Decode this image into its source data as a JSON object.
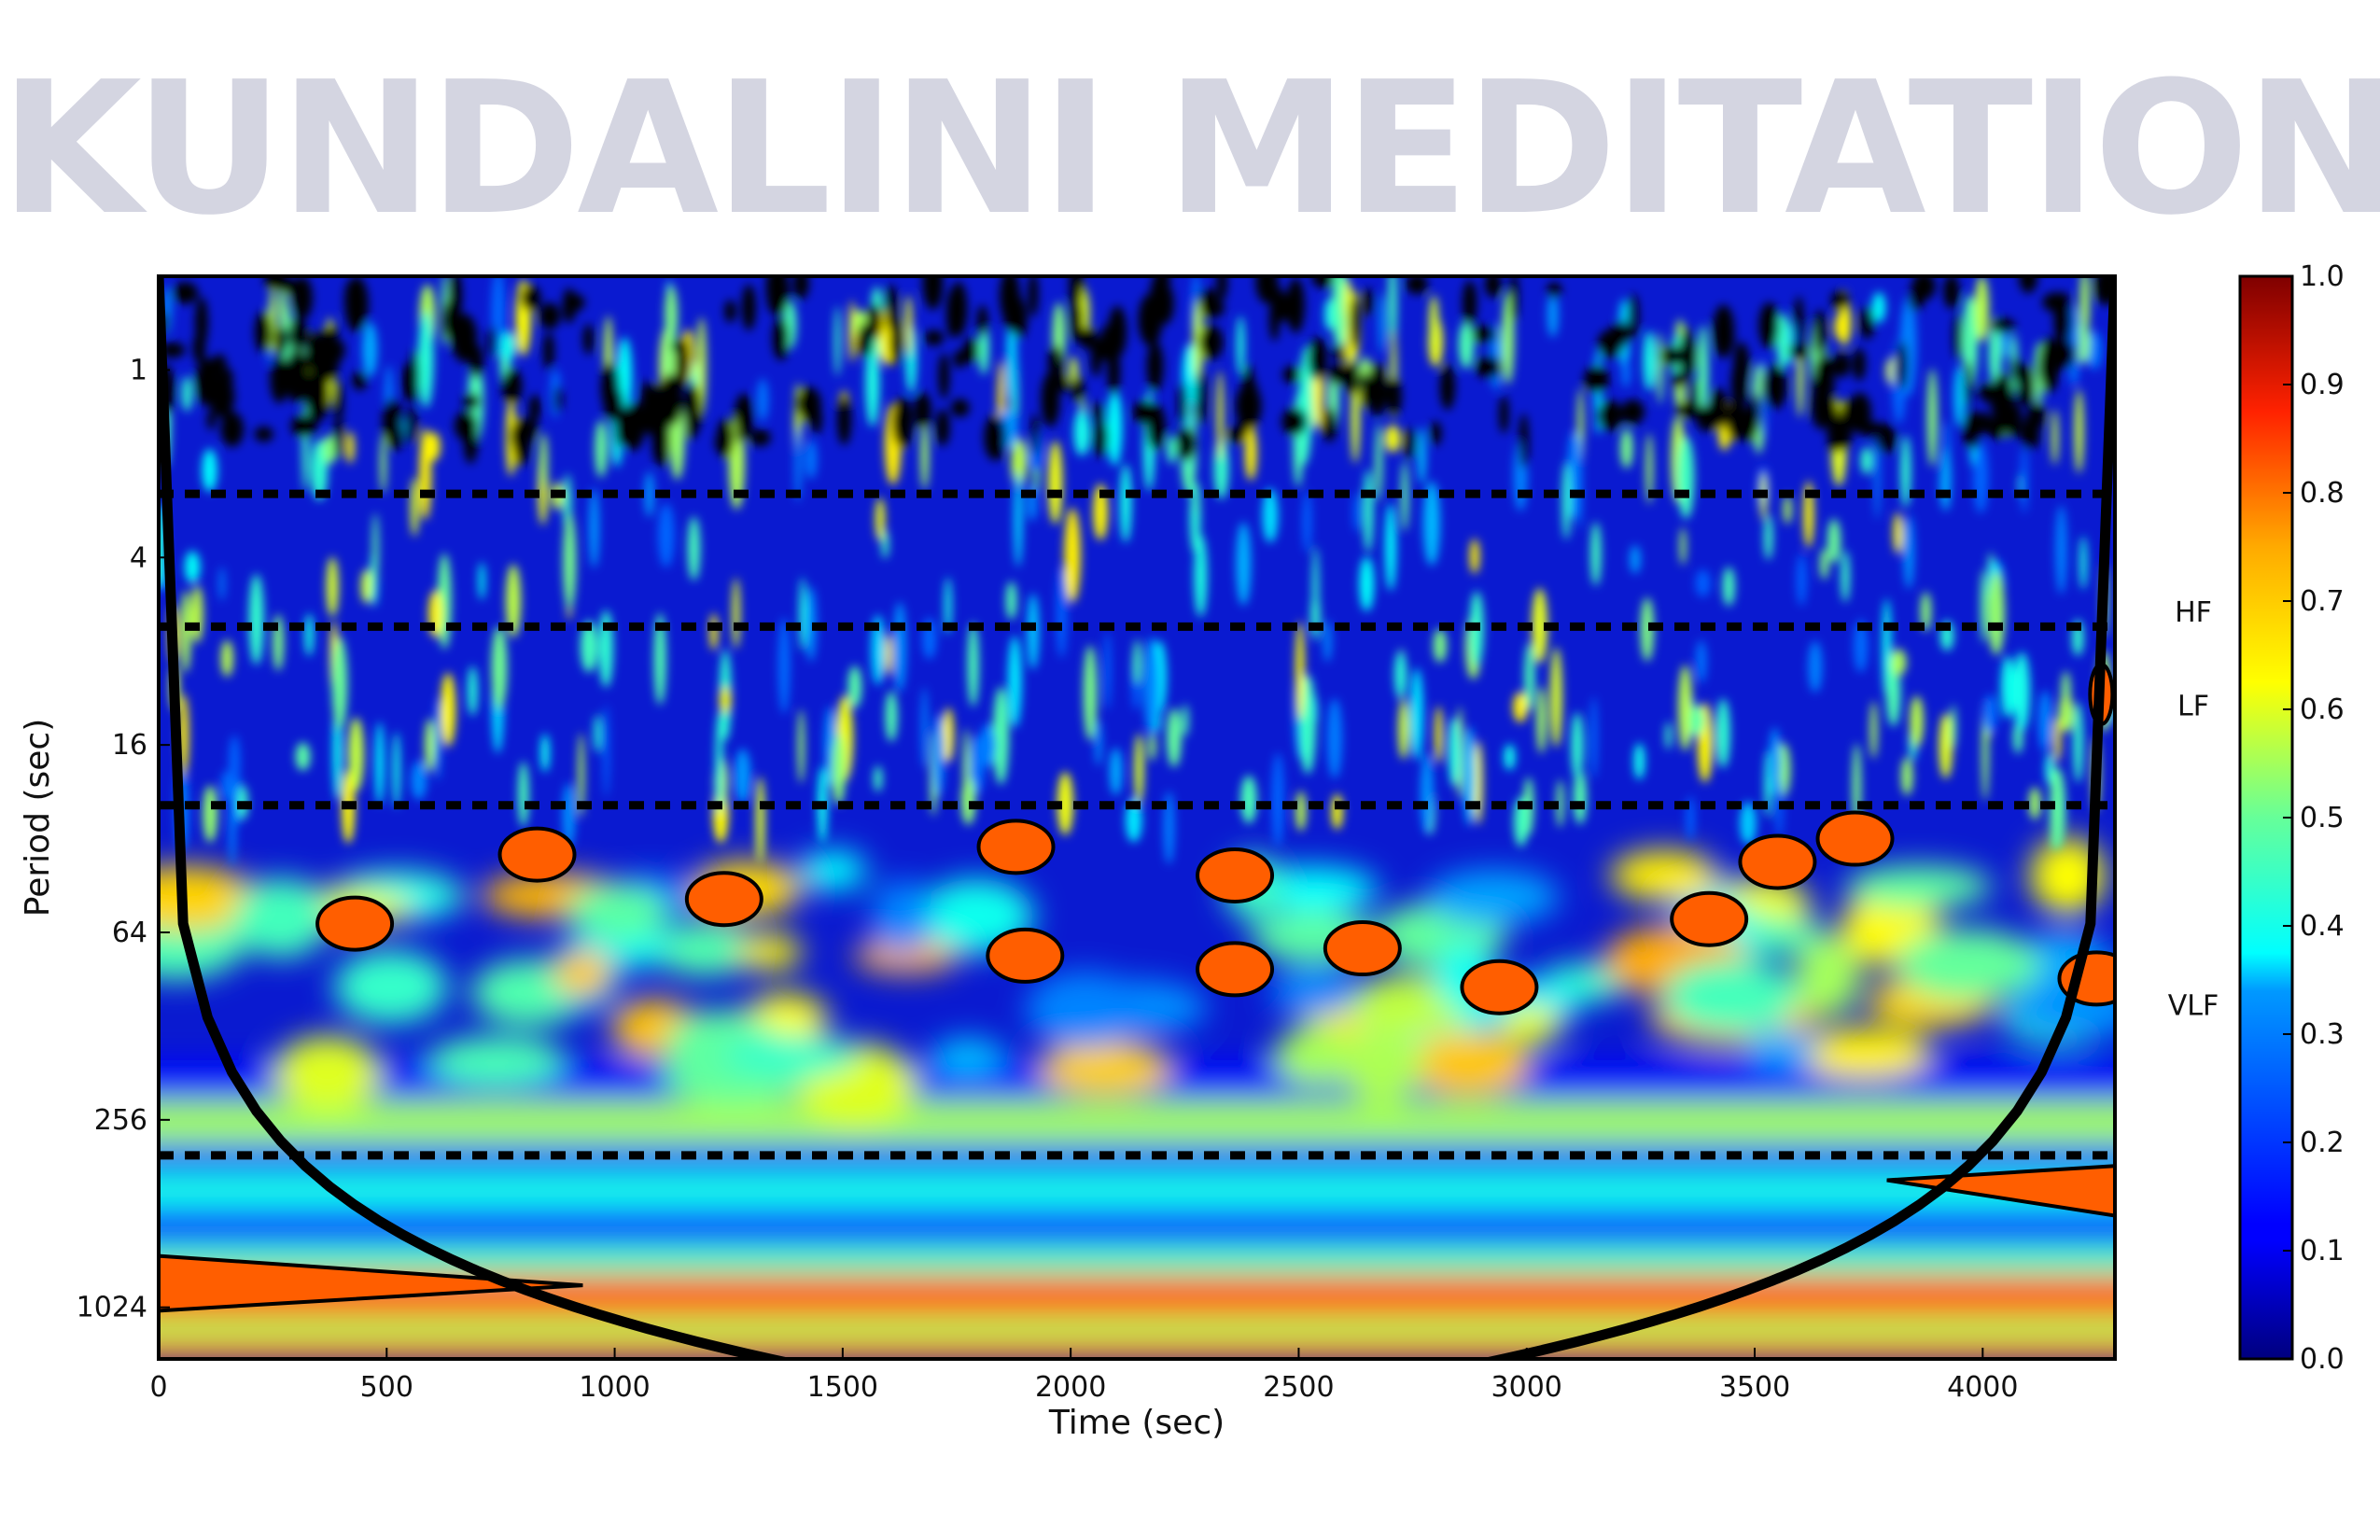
{
  "title": "KUNDALINI MEDITATION",
  "chart_data": {
    "type": "heatmap",
    "title": "KUNDALINI MEDITATION",
    "xlabel": "Time (sec)",
    "ylabel": "Period (sec)",
    "xlim": [
      0,
      4290
    ],
    "ylim": [
      0.5,
      1500
    ],
    "y_scale": "log2",
    "x_ticks": [
      0,
      500,
      1000,
      1500,
      2000,
      2500,
      3000,
      3500,
      4000
    ],
    "y_ticks": [
      {
        "value": 1,
        "label": "1"
      },
      {
        "value": 4,
        "label": "4"
      },
      {
        "value": 16,
        "label": "16"
      },
      {
        "value": 64,
        "label": "64"
      },
      {
        "value": 256,
        "label": "256"
      },
      {
        "value": 1024,
        "label": "1024"
      }
    ],
    "colorbar": {
      "min": 0.0,
      "max": 1.0,
      "ticks": [
        "0.0",
        "0.1",
        "0.2",
        "0.3",
        "0.4",
        "0.5",
        "0.6",
        "0.7",
        "0.8",
        "0.9",
        "1.0"
      ],
      "colormap": "jet"
    },
    "band_boundaries": [
      2.5,
      6.67,
      25,
      333
    ],
    "bands": [
      {
        "label": "HF",
        "period": 6
      },
      {
        "label": "LF",
        "period": 12
      },
      {
        "label": "VLF",
        "period": 110
      }
    ],
    "cone_of_influence": "u-shaped",
    "significance_contours": [
      {
        "x": 430,
        "period": 60
      },
      {
        "x": 830,
        "period": 36
      },
      {
        "x": 1240,
        "period": 50
      },
      {
        "x": 1880,
        "period": 34
      },
      {
        "x": 1900,
        "period": 76
      },
      {
        "x": 2360,
        "period": 42
      },
      {
        "x": 2360,
        "period": 84
      },
      {
        "x": 2640,
        "period": 72
      },
      {
        "x": 2940,
        "period": 96
      },
      {
        "x": 3400,
        "period": 58
      },
      {
        "x": 3720,
        "period": 32
      },
      {
        "x": 3550,
        "period": 38
      },
      {
        "x": 4250,
        "period": 90
      },
      {
        "x": 4260,
        "period": 11
      }
    ]
  }
}
